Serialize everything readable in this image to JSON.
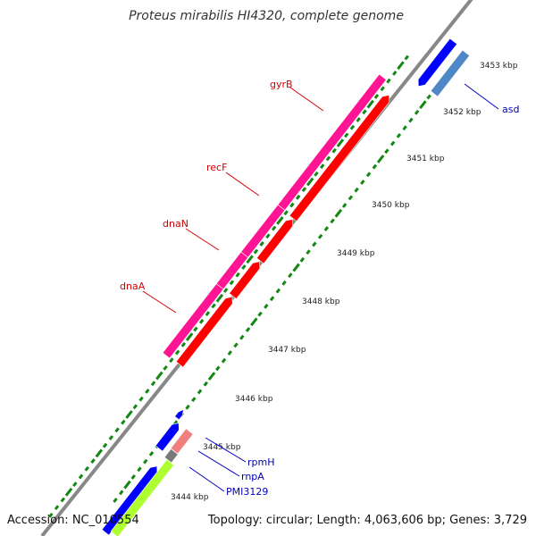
{
  "title": "Proteus mirabilis HI4320, complete genome",
  "footer": {
    "accession": "Accession: NC_010554",
    "summary": "Topology: circular; Length: 4,063,606 bp; Genes: 3,729"
  },
  "colors": {
    "backbone": "#888888",
    "ticks": "#118811",
    "label_red": "#d40000",
    "label_blue": "#0000c0",
    "magenta_track": "#ff1493",
    "red_track": "#ff0000",
    "blue_track": "#0000ff",
    "steel_track": "#4f86c6",
    "salmon_track": "#f08080",
    "gray_track": "#7a7a7a",
    "lime_track": "#adff2f"
  },
  "tick_labels": [
    "3444 kbp",
    "3445 kbp",
    "3446 kbp",
    "3447 kbp",
    "3448 kbp",
    "3449 kbp",
    "3450 kbp",
    "3451 kbp",
    "3452 kbp",
    "3453 kbp"
  ],
  "genes": [
    {
      "name": "gyrB",
      "color": "label_red"
    },
    {
      "name": "recF",
      "color": "label_red"
    },
    {
      "name": "dnaN",
      "color": "label_red"
    },
    {
      "name": "dnaA",
      "color": "label_red"
    },
    {
      "name": "asd",
      "color": "label_blue"
    },
    {
      "name": "rpmH",
      "color": "label_blue"
    },
    {
      "name": "rnpA",
      "color": "label_blue"
    },
    {
      "name": "PMI3129",
      "color": "label_blue"
    }
  ]
}
